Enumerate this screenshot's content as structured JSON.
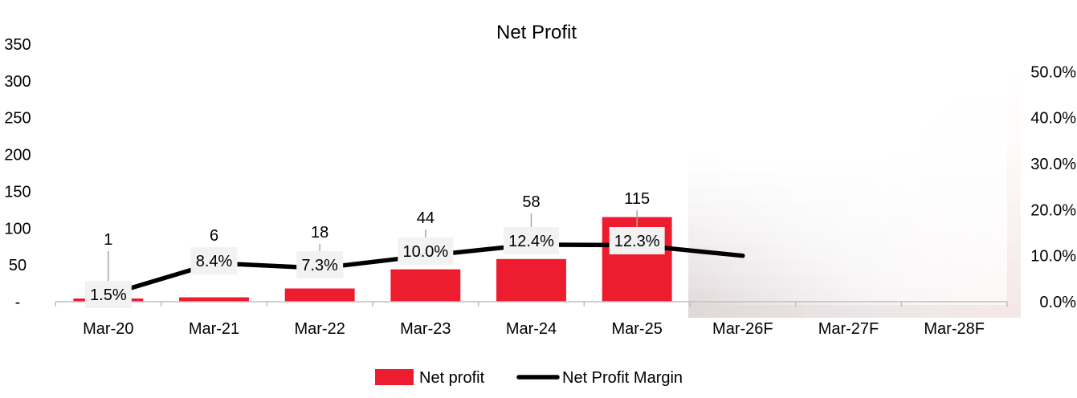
{
  "chart_data": {
    "type": "bar",
    "title": "Net Profit",
    "categories": [
      "Mar-20",
      "Mar-21",
      "Mar-22",
      "Mar-23",
      "Mar-24",
      "Mar-25",
      "Mar-26F",
      "Mar-27F",
      "Mar-28F"
    ],
    "series": [
      {
        "name": "Net profit",
        "kind": "bar",
        "axis": "left",
        "color": "#ED1C2E",
        "values": [
          1,
          6,
          18,
          44,
          58,
          115,
          null,
          null,
          null
        ],
        "labels": [
          "1",
          "6",
          "18",
          "44",
          "58",
          "115",
          "",
          "",
          ""
        ]
      },
      {
        "name": "Net Profit Margin",
        "kind": "line",
        "axis": "right",
        "color": "#000000",
        "values": [
          0.015,
          0.084,
          0.073,
          0.1,
          0.124,
          0.123,
          0.1,
          null,
          null
        ],
        "labels": [
          "1.5%",
          "8.4%",
          "7.3%",
          "10.0%",
          "12.4%",
          "12.3%",
          "",
          "",
          ""
        ]
      }
    ],
    "y_left": {
      "min": 0,
      "max": 350,
      "ticks": [
        "-",
        "50",
        "100",
        "150",
        "200",
        "250",
        "300",
        "350"
      ]
    },
    "y_right": {
      "min": 0,
      "max": 0.56,
      "ticks": [
        "0.0%",
        "10.0%",
        "20.0%",
        "30.0%",
        "40.0%",
        "50.0%"
      ]
    },
    "forecast_region": "Mar-26F to Mar-28F values are pixelated / obscured",
    "legend": {
      "position": "bottom"
    },
    "grid": false
  }
}
